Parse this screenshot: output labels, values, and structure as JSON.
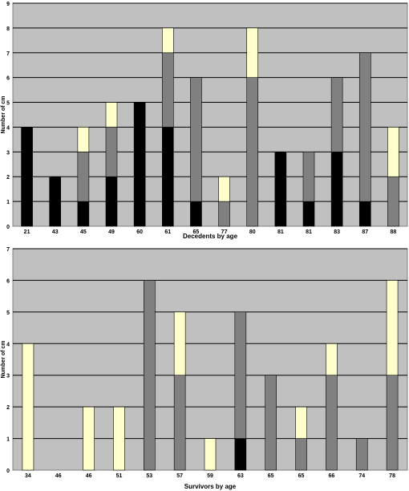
{
  "colors": {
    "plot_bg": "#c0c0c0",
    "seg_black": "#000000",
    "seg_gray": "#808080",
    "seg_cream": "#ffffcc",
    "grid": "#000000"
  },
  "chart_data": [
    {
      "type": "bar",
      "stacked": true,
      "xlabel": "Decedents by age",
      "ylabel": "Number of cm",
      "ylim": [
        0,
        9
      ],
      "yticks": [
        "0",
        "1",
        "2",
        "3",
        "4",
        "5",
        "6",
        "7",
        "8",
        "9"
      ],
      "grid": true,
      "categories": [
        "21",
        "43",
        "45",
        "49",
        "60",
        "61",
        "65",
        "77",
        "80",
        "81",
        "81",
        "83",
        "87",
        "88"
      ],
      "series": [
        {
          "color": "#000000",
          "values": [
            4,
            2,
            1,
            2,
            5,
            4,
            1,
            0,
            0,
            3,
            1,
            3,
            1,
            0
          ]
        },
        {
          "color": "#808080",
          "values": [
            0,
            0,
            2,
            2,
            0,
            3,
            5,
            1,
            6,
            0,
            2,
            3,
            6,
            2
          ]
        },
        {
          "color": "#ffffcc",
          "values": [
            0,
            0,
            1,
            1,
            0,
            1,
            0,
            1,
            2,
            0,
            0,
            0,
            0,
            2
          ]
        }
      ]
    },
    {
      "type": "bar",
      "stacked": true,
      "xlabel": "Survivors by age",
      "ylabel": "Number of cm",
      "ylim": [
        0,
        7
      ],
      "yticks": [
        "0",
        "1",
        "2",
        "3",
        "4",
        "5",
        "6",
        "7"
      ],
      "grid": true,
      "categories": [
        "34",
        "46",
        "46",
        "51",
        "53",
        "57",
        "59",
        "63",
        "65",
        "65",
        "66",
        "74",
        "78"
      ],
      "series": [
        {
          "color": "#000000",
          "values": [
            0,
            0,
            0,
            0,
            0,
            0,
            0,
            1,
            0,
            0,
            0,
            0,
            0
          ]
        },
        {
          "color": "#808080",
          "values": [
            0,
            0,
            0,
            0,
            6,
            3,
            0,
            4,
            3,
            1,
            3,
            1,
            3
          ]
        },
        {
          "color": "#ffffcc",
          "values": [
            4,
            0,
            2,
            2,
            0,
            2,
            1,
            0,
            0,
            1,
            1,
            0,
            3
          ]
        }
      ]
    }
  ]
}
